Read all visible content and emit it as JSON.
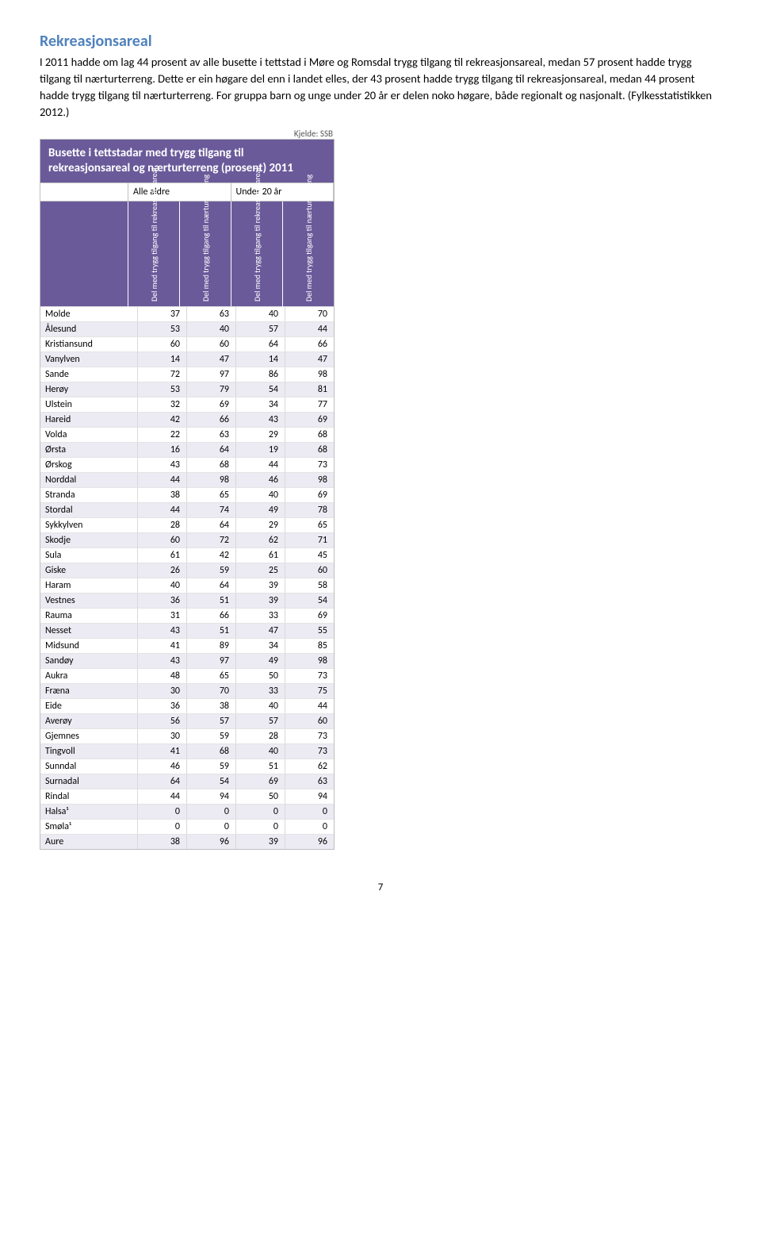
{
  "heading": "Rekreasjonsareal",
  "paragraph": "I 2011 hadde om lag 44 prosent av alle busette i tettstad i Møre og Romsdal trygg tilgang til rekreasjonsareal, medan 57 prosent hadde trygg tilgang til nærturterreng. Dette er ein høgare del enn i landet elles, der 43 prosent hadde trygg tilgang til rekreasjonsareal, medan 44 prosent hadde trygg tilgang til nærturterreng. For gruppa barn og unge under 20 år er delen noko høgare, både regionalt og nasjonalt. (Fylkesstatistikken 2012.)",
  "source_label": "Kjelde: SSB",
  "table": {
    "title": "Busette i tettstadar med trygg tilgang til rekreasjonsareal og nærturterreng (prosent) 2011",
    "group_headers": [
      "Alle aldre",
      "Under 20 år"
    ],
    "col_headers": [
      "Del med trygg tilgang til rekreasjon-sareal",
      "Del med trygg tilgang til nærturter-reng",
      "Del med trygg tilgang til rekreasjon-sareal",
      "Del med trygg tilgang til nærturter-reng"
    ],
    "header_bg": "#6b5a9a",
    "alt_row_bg": "#eceaf2",
    "rows": [
      {
        "label": "Molde",
        "v": [
          37,
          63,
          40,
          70
        ]
      },
      {
        "label": "Ålesund",
        "v": [
          53,
          40,
          57,
          44
        ]
      },
      {
        "label": "Kristiansund",
        "v": [
          60,
          60,
          64,
          66
        ]
      },
      {
        "label": "Vanylven",
        "v": [
          14,
          47,
          14,
          47
        ]
      },
      {
        "label": "Sande",
        "v": [
          72,
          97,
          86,
          98
        ]
      },
      {
        "label": "Herøy",
        "v": [
          53,
          79,
          54,
          81
        ]
      },
      {
        "label": "Ulstein",
        "v": [
          32,
          69,
          34,
          77
        ]
      },
      {
        "label": "Hareid",
        "v": [
          42,
          66,
          43,
          69
        ]
      },
      {
        "label": "Volda",
        "v": [
          22,
          63,
          29,
          68
        ]
      },
      {
        "label": "Ørsta",
        "v": [
          16,
          64,
          19,
          68
        ]
      },
      {
        "label": "Ørskog",
        "v": [
          43,
          68,
          44,
          73
        ]
      },
      {
        "label": "Norddal",
        "v": [
          44,
          98,
          46,
          98
        ]
      },
      {
        "label": "Stranda",
        "v": [
          38,
          65,
          40,
          69
        ]
      },
      {
        "label": "Stordal",
        "v": [
          44,
          74,
          49,
          78
        ]
      },
      {
        "label": "Sykkylven",
        "v": [
          28,
          64,
          29,
          65
        ]
      },
      {
        "label": "Skodje",
        "v": [
          60,
          72,
          62,
          71
        ]
      },
      {
        "label": "Sula",
        "v": [
          61,
          42,
          61,
          45
        ]
      },
      {
        "label": "Giske",
        "v": [
          26,
          59,
          25,
          60
        ]
      },
      {
        "label": "Haram",
        "v": [
          40,
          64,
          39,
          58
        ]
      },
      {
        "label": "Vestnes",
        "v": [
          36,
          51,
          39,
          54
        ]
      },
      {
        "label": "Rauma",
        "v": [
          31,
          66,
          33,
          69
        ]
      },
      {
        "label": "Nesset",
        "v": [
          43,
          51,
          47,
          55
        ]
      },
      {
        "label": "Midsund",
        "v": [
          41,
          89,
          34,
          85
        ]
      },
      {
        "label": "Sandøy",
        "v": [
          43,
          97,
          49,
          98
        ]
      },
      {
        "label": "Aukra",
        "v": [
          48,
          65,
          50,
          73
        ]
      },
      {
        "label": "Fræna",
        "v": [
          30,
          70,
          33,
          75
        ]
      },
      {
        "label": "Eide",
        "v": [
          36,
          38,
          40,
          44
        ]
      },
      {
        "label": "Averøy",
        "v": [
          56,
          57,
          57,
          60
        ]
      },
      {
        "label": "Gjemnes",
        "v": [
          30,
          59,
          28,
          73
        ]
      },
      {
        "label": "Tingvoll",
        "v": [
          41,
          68,
          40,
          73
        ]
      },
      {
        "label": "Sunndal",
        "v": [
          46,
          59,
          51,
          62
        ]
      },
      {
        "label": "Surnadal",
        "v": [
          64,
          54,
          69,
          63
        ]
      },
      {
        "label": "Rindal",
        "v": [
          44,
          94,
          50,
          94
        ]
      },
      {
        "label": "Halsa¹",
        "v": [
          0,
          0,
          0,
          0
        ]
      },
      {
        "label": "Smøla¹",
        "v": [
          0,
          0,
          0,
          0
        ]
      },
      {
        "label": "Aure",
        "v": [
          38,
          96,
          39,
          96
        ]
      }
    ]
  },
  "page_number": "7"
}
